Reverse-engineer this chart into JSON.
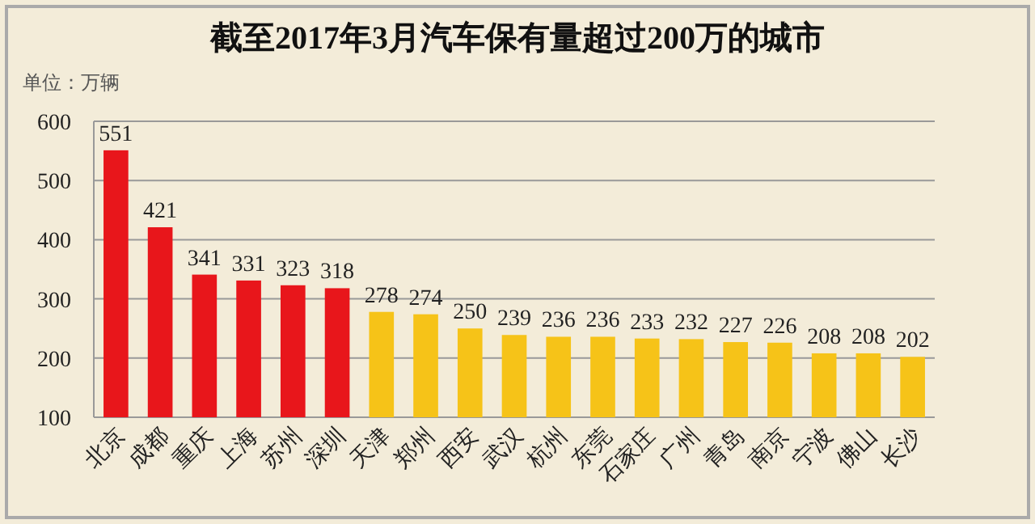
{
  "chart_data": {
    "type": "bar",
    "title": "截至2017年3月汽车保有量超过200万的城市",
    "ylabel": "单位：万辆",
    "categories": [
      "北京",
      "成都",
      "重庆",
      "上海",
      "苏州",
      "深圳",
      "天津",
      "郑州",
      "西安",
      "武汉",
      "杭州",
      "东莞",
      "石家庄",
      "广州",
      "青岛",
      "南京",
      "宁波",
      "佛山",
      "长沙"
    ],
    "values": [
      551,
      421,
      341,
      331,
      323,
      318,
      278,
      274,
      250,
      239,
      236,
      236,
      233,
      232,
      227,
      226,
      208,
      208,
      202
    ],
    "colors": [
      "#e8161b",
      "#e8161b",
      "#e8161b",
      "#e8161b",
      "#e8161b",
      "#e8161b",
      "#f6c318",
      "#f6c318",
      "#f6c318",
      "#f6c318",
      "#f6c318",
      "#f6c318",
      "#f6c318",
      "#f6c318",
      "#f6c318",
      "#f6c318",
      "#f6c318",
      "#f6c318",
      "#f6c318"
    ],
    "ylim": [
      100,
      600
    ],
    "yticks": [
      100,
      200,
      300,
      400,
      500,
      600
    ],
    "grid": "y",
    "data_labels": true
  }
}
